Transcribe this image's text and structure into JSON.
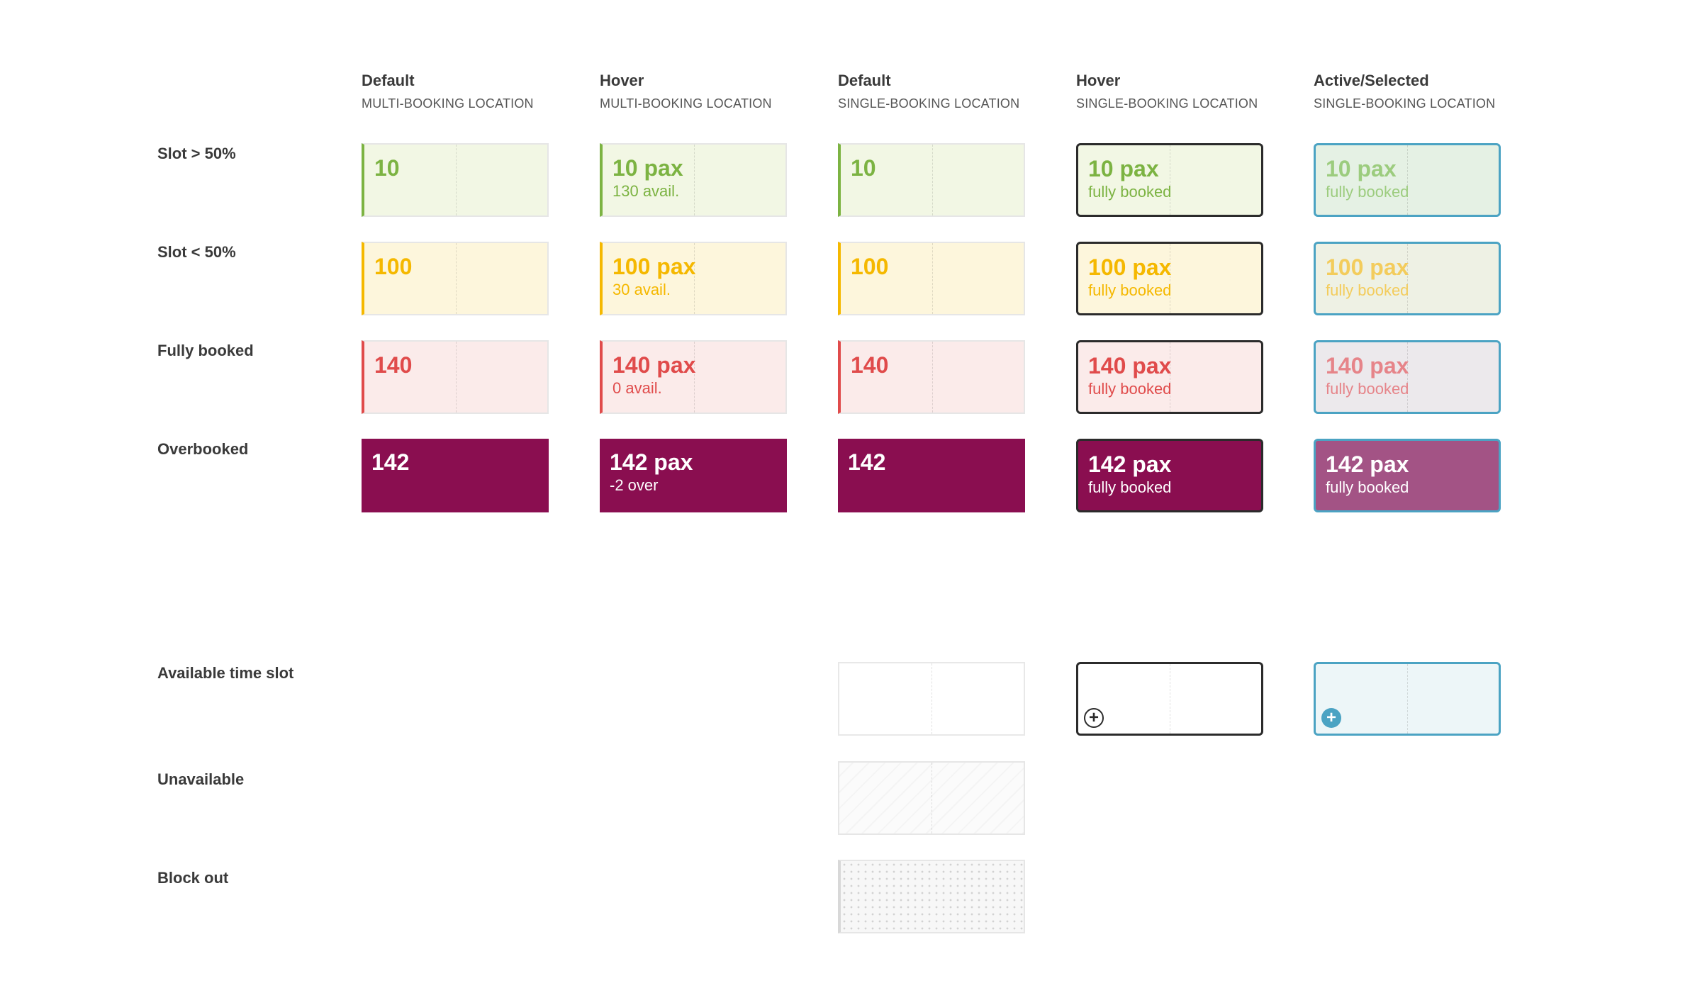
{
  "columns": [
    {
      "title": "Default",
      "subtitle": "MULTI-BOOKING LOCATION"
    },
    {
      "title": "Hover",
      "subtitle": "MULTI-BOOKING LOCATION"
    },
    {
      "title": "Default",
      "subtitle": "SINGLE-BOOKING LOCATION"
    },
    {
      "title": "Hover",
      "subtitle": "SINGLE-BOOKING LOCATION"
    },
    {
      "title": "Active/Selected",
      "subtitle": "SINGLE-BOOKING LOCATION"
    }
  ],
  "rows": [
    {
      "label": "Slot > 50%",
      "value": "10",
      "pax": "10 pax",
      "avail": "130 avail.",
      "booked": "fully booked",
      "colors": {
        "text": "#7cb342",
        "bg": "#f2f7e4",
        "accent": "#7cb342",
        "active_bg": "#e5f1e4",
        "active_text": "#9ccc7e"
      }
    },
    {
      "label": "Slot < 50%",
      "value": "100",
      "pax": "100 pax",
      "avail": "30 avail.",
      "booked": "fully booked",
      "colors": {
        "text": "#f5b800",
        "bg": "#fdf6dc",
        "accent": "#f5b800",
        "active_bg": "#eef1e4",
        "active_text": "#f3cc5c"
      }
    },
    {
      "label": "Fully booked",
      "value": "140",
      "pax": "140 pax",
      "avail": "0 avail.",
      "booked": "fully booked",
      "colors": {
        "text": "#e04b4b",
        "bg": "#fbebea",
        "accent": "#e04b4b",
        "active_bg": "#ece9ec",
        "active_text": "#e68489"
      }
    },
    {
      "label": "Overbooked",
      "value": "142",
      "pax": "142 pax",
      "avail": "-2 over",
      "booked": "fully booked",
      "colors": {
        "text": "#ffffff",
        "bg": "#8a0e50",
        "accent": "#8a0e50",
        "active_bg": "#a35385",
        "active_text": "#ffffff"
      }
    }
  ],
  "extra_rows": [
    {
      "label": "Available time slot"
    },
    {
      "label": "Unavailable"
    },
    {
      "label": "Block out"
    }
  ],
  "plus_icon": {
    "glyph": "+",
    "hover_color": "#2b2b2b",
    "active_color": "#4ba3c3"
  },
  "accent_active": "#4ba3c3"
}
